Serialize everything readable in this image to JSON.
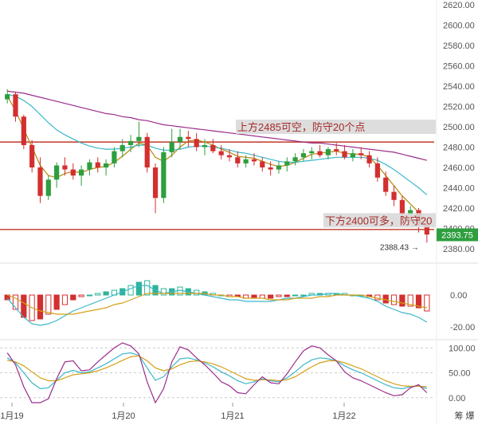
{
  "chart_data": {
    "type": "candlestick",
    "price_panel": {
      "ylim": [
        2380,
        2620
      ],
      "yticks": [
        "2620.00",
        "2600.00",
        "2580.00",
        "2560.00",
        "2540.00",
        "2520.00",
        "2500.00",
        "2480.00",
        "2460.00",
        "2440.00",
        "2420.00",
        "2400.00",
        "2380.00"
      ],
      "xlabels": [
        "1月19",
        "1月20",
        "1月21",
        "1月22"
      ],
      "bottom_right_label": "筹 爆",
      "current_price": "2393.75",
      "low_marker": "2388.43",
      "levels": [
        {
          "value": 2485,
          "color": "#c0392b"
        },
        {
          "value": 2399,
          "color": "#c0392b"
        }
      ],
      "annotations": [
        {
          "text": "上方2485可空，防守20个点",
          "price": 2500,
          "bg": "#d9d9d9"
        },
        {
          "text": "下方2400可多，防守20",
          "price": 2408,
          "bg": "#d9d9d9"
        }
      ],
      "candles": [
        [
          2527,
          2537,
          2523,
          2532
        ],
        [
          2532,
          2534,
          2505,
          2510
        ],
        [
          2510,
          2512,
          2478,
          2482
        ],
        [
          2482,
          2487,
          2455,
          2460
        ],
        [
          2460,
          2470,
          2425,
          2432
        ],
        [
          2432,
          2452,
          2428,
          2448
        ],
        [
          2448,
          2465,
          2440,
          2462
        ],
        [
          2462,
          2470,
          2452,
          2458
        ],
        [
          2458,
          2464,
          2448,
          2452
        ],
        [
          2452,
          2462,
          2442,
          2458
        ],
        [
          2458,
          2468,
          2452,
          2465
        ],
        [
          2465,
          2470,
          2455,
          2460
        ],
        [
          2460,
          2468,
          2452,
          2464
        ],
        [
          2464,
          2480,
          2460,
          2476
        ],
        [
          2476,
          2488,
          2470,
          2482
        ],
        [
          2482,
          2492,
          2475,
          2486
        ],
        [
          2486,
          2505,
          2480,
          2490
        ],
        [
          2490,
          2494,
          2455,
          2460
        ],
        [
          2460,
          2464,
          2415,
          2430
        ],
        [
          2430,
          2480,
          2425,
          2475
        ],
        [
          2475,
          2498,
          2470,
          2485
        ],
        [
          2485,
          2498,
          2478,
          2490
        ],
        [
          2490,
          2496,
          2480,
          2488
        ],
        [
          2488,
          2494,
          2476,
          2480
        ],
        [
          2480,
          2488,
          2472,
          2482
        ],
        [
          2482,
          2488,
          2474,
          2476
        ],
        [
          2476,
          2482,
          2468,
          2472
        ],
        [
          2472,
          2478,
          2466,
          2470
        ],
        [
          2470,
          2476,
          2460,
          2464
        ],
        [
          2464,
          2472,
          2460,
          2468
        ],
        [
          2468,
          2474,
          2462,
          2466
        ],
        [
          2466,
          2470,
          2456,
          2460
        ],
        [
          2460,
          2466,
          2452,
          2458
        ],
        [
          2458,
          2466,
          2454,
          2462
        ],
        [
          2462,
          2470,
          2456,
          2466
        ],
        [
          2466,
          2474,
          2462,
          2470
        ],
        [
          2470,
          2478,
          2466,
          2474
        ],
        [
          2474,
          2480,
          2468,
          2476
        ],
        [
          2476,
          2482,
          2470,
          2472
        ],
        [
          2472,
          2480,
          2468,
          2478
        ],
        [
          2478,
          2484,
          2472,
          2476
        ],
        [
          2476,
          2482,
          2468,
          2470
        ],
        [
          2470,
          2478,
          2466,
          2474
        ],
        [
          2474,
          2480,
          2468,
          2472
        ],
        [
          2472,
          2476,
          2460,
          2464
        ],
        [
          2464,
          2470,
          2446,
          2450
        ],
        [
          2450,
          2456,
          2432,
          2436
        ],
        [
          2436,
          2442,
          2422,
          2428
        ],
        [
          2428,
          2432,
          2408,
          2414
        ],
        [
          2414,
          2422,
          2406,
          2418
        ],
        [
          2418,
          2420,
          2396,
          2404
        ],
        [
          2404,
          2408,
          2386,
          2394
        ]
      ],
      "ma": [
        {
          "name": "ma-short",
          "color": "#b8860b",
          "values": [
            2530,
            2516,
            2498,
            2480,
            2462,
            2452,
            2450,
            2454,
            2456,
            2455,
            2458,
            2460,
            2461,
            2465,
            2471,
            2478,
            2484,
            2482,
            2470,
            2466,
            2472,
            2480,
            2486,
            2487,
            2485,
            2482,
            2478,
            2475,
            2471,
            2470,
            2469,
            2466,
            2463,
            2461,
            2462,
            2465,
            2469,
            2473,
            2474,
            2475,
            2476,
            2474,
            2473,
            2473,
            2470,
            2462,
            2452,
            2442,
            2432,
            2424,
            2416,
            2406
          ]
        },
        {
          "name": "ma-mid",
          "color": "#3ab7c9",
          "values": [
            2532,
            2530,
            2526,
            2520,
            2512,
            2504,
            2497,
            2492,
            2488,
            2484,
            2481,
            2479,
            2478,
            2478,
            2479,
            2480,
            2482,
            2482,
            2479,
            2477,
            2477,
            2478,
            2480,
            2481,
            2481,
            2480,
            2479,
            2477,
            2475,
            2474,
            2472,
            2470,
            2468,
            2466,
            2465,
            2465,
            2466,
            2467,
            2468,
            2469,
            2470,
            2470,
            2470,
            2470,
            2469,
            2467,
            2463,
            2458,
            2452,
            2446,
            2440,
            2433
          ]
        },
        {
          "name": "ma-long",
          "color": "#9b2d8a",
          "values": [
            2535,
            2534,
            2533,
            2531,
            2529,
            2527,
            2525,
            2523,
            2521,
            2519,
            2517,
            2515,
            2513,
            2512,
            2510,
            2509,
            2507,
            2506,
            2504,
            2502,
            2501,
            2500,
            2499,
            2498,
            2497,
            2496,
            2495,
            2494,
            2493,
            2492,
            2491,
            2490,
            2489,
            2488,
            2487,
            2486,
            2485,
            2484,
            2484,
            2483,
            2482,
            2481,
            2480,
            2479,
            2478,
            2477,
            2476,
            2475,
            2473,
            2471,
            2469,
            2467
          ]
        }
      ]
    },
    "macd_panel": {
      "ylim": [
        -25,
        15
      ],
      "yticks": [
        "0.00",
        "-20.00"
      ],
      "hist": [
        -3,
        -9,
        -14,
        -16,
        -15,
        -12,
        -9,
        -6,
        -3,
        -1,
        0,
        1,
        2,
        3,
        4,
        6,
        8,
        9,
        6,
        4,
        4,
        5,
        4,
        3,
        2,
        1,
        0,
        -1,
        -1,
        -2,
        -2,
        -2,
        -2,
        -1,
        -1,
        0,
        0,
        1,
        1,
        1,
        1,
        1,
        0,
        0,
        -1,
        -3,
        -5,
        -6,
        -7,
        -7,
        -8,
        -10
      ],
      "dif": [
        -2,
        -8,
        -14,
        -18,
        -19,
        -18,
        -16,
        -13,
        -10,
        -8,
        -6,
        -4,
        -2,
        0,
        2,
        4,
        6,
        6,
        3,
        1,
        2,
        3,
        2,
        1,
        0,
        -1,
        -2,
        -3,
        -3,
        -4,
        -4,
        -4,
        -4,
        -3,
        -2,
        -2,
        -1,
        0,
        0,
        1,
        1,
        0,
        0,
        -1,
        -2,
        -4,
        -7,
        -9,
        -11,
        -12,
        -14,
        -17
      ],
      "dea": [
        0,
        -2,
        -5,
        -8,
        -10,
        -11,
        -12,
        -12,
        -12,
        -11,
        -10,
        -9,
        -8,
        -6,
        -5,
        -3,
        -1,
        1,
        1,
        1,
        1,
        1,
        1,
        1,
        1,
        0,
        0,
        -1,
        -1,
        -2,
        -2,
        -2,
        -3,
        -3,
        -3,
        -2,
        -2,
        -2,
        -1,
        -1,
        0,
        0,
        0,
        0,
        -1,
        -2,
        -3,
        -4,
        -5,
        -6,
        -7,
        -8
      ],
      "dif_color": "#3ab7c9",
      "dea_color": "#d4a017"
    },
    "kdj_panel": {
      "ylim": [
        -10,
        110
      ],
      "yticks": [
        "100.00",
        "50.00",
        "0.00"
      ],
      "k": [
        80,
        70,
        50,
        30,
        18,
        20,
        35,
        50,
        55,
        50,
        52,
        60,
        68,
        78,
        88,
        90,
        85,
        60,
        35,
        42,
        62,
        78,
        80,
        76,
        70,
        62,
        52,
        44,
        34,
        28,
        32,
        38,
        34,
        32,
        40,
        52,
        66,
        76,
        80,
        78,
        74,
        64,
        56,
        50,
        42,
        34,
        26,
        20,
        18,
        22,
        24,
        18
      ],
      "d": [
        75,
        72,
        64,
        52,
        40,
        34,
        34,
        40,
        46,
        48,
        50,
        54,
        60,
        67,
        75,
        82,
        84,
        74,
        60,
        54,
        58,
        66,
        72,
        74,
        72,
        68,
        62,
        54,
        46,
        38,
        35,
        36,
        36,
        34,
        36,
        42,
        52,
        62,
        70,
        74,
        74,
        70,
        64,
        58,
        50,
        42,
        34,
        28,
        24,
        23,
        23,
        22
      ],
      "j": [
        90,
        66,
        22,
        -10,
        -10,
        -2,
        38,
        72,
        74,
        54,
        56,
        72,
        86,
        100,
        110,
        104,
        88,
        32,
        -10,
        18,
        72,
        102,
        96,
        80,
        66,
        50,
        32,
        24,
        10,
        8,
        26,
        42,
        30,
        28,
        48,
        72,
        94,
        104,
        100,
        86,
        74,
        52,
        40,
        34,
        26,
        18,
        10,
        4,
        6,
        20,
        26,
        10
      ],
      "k_color": "#3ab7c9",
      "d_color": "#d4a017",
      "j_color": "#9b2d8a"
    }
  }
}
